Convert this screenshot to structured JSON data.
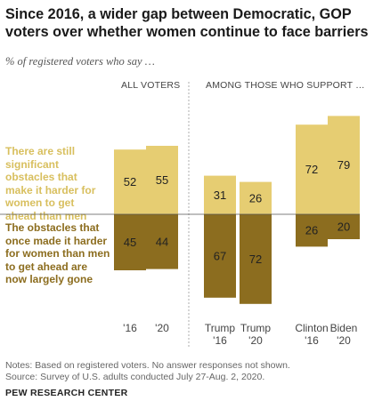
{
  "title": "Since 2016, a wider gap between Democratic, GOP voters over whether women continue to face barriers",
  "subtitle": "% of registered voters who say …",
  "group_labels": {
    "all": "ALL VOTERS",
    "support": "AMONG THOSE WHO SUPPORT …"
  },
  "legend": {
    "obstacles_remain": "There are still significant obstacles that make it harder for women to get ahead than men",
    "obstacles_gone": "The obstacles that once made it harder for women than men to get ahead are now largely gone"
  },
  "notes": {
    "note": "Notes: Based on registered voters. No answer responses not shown.",
    "source": "Source: Survey of U.S. adults conducted July 27-Aug. 2, 2020."
  },
  "brand": "PEW RESEARCH CENTER",
  "colors": {
    "obstacles_remain": "#e6cd72",
    "obstacles_gone": "#8c6d1f",
    "divider": "#999999"
  },
  "chart_data": {
    "type": "bar",
    "stacked": "diverging",
    "categories": [
      [
        "'16"
      ],
      [
        "'20"
      ],
      [
        "Trump",
        "'16"
      ],
      [
        "Trump",
        "'20"
      ],
      [
        "Clinton",
        "'16"
      ],
      [
        "Biden",
        "'20"
      ]
    ],
    "series": [
      {
        "name": "There are still significant obstacles that make it harder for women to get ahead than men",
        "values": [
          52,
          55,
          31,
          26,
          72,
          79
        ]
      },
      {
        "name": "The obstacles that once made it harder for women than men to get ahead are now largely gone",
        "values": [
          45,
          44,
          67,
          72,
          26,
          20
        ]
      }
    ]
  }
}
